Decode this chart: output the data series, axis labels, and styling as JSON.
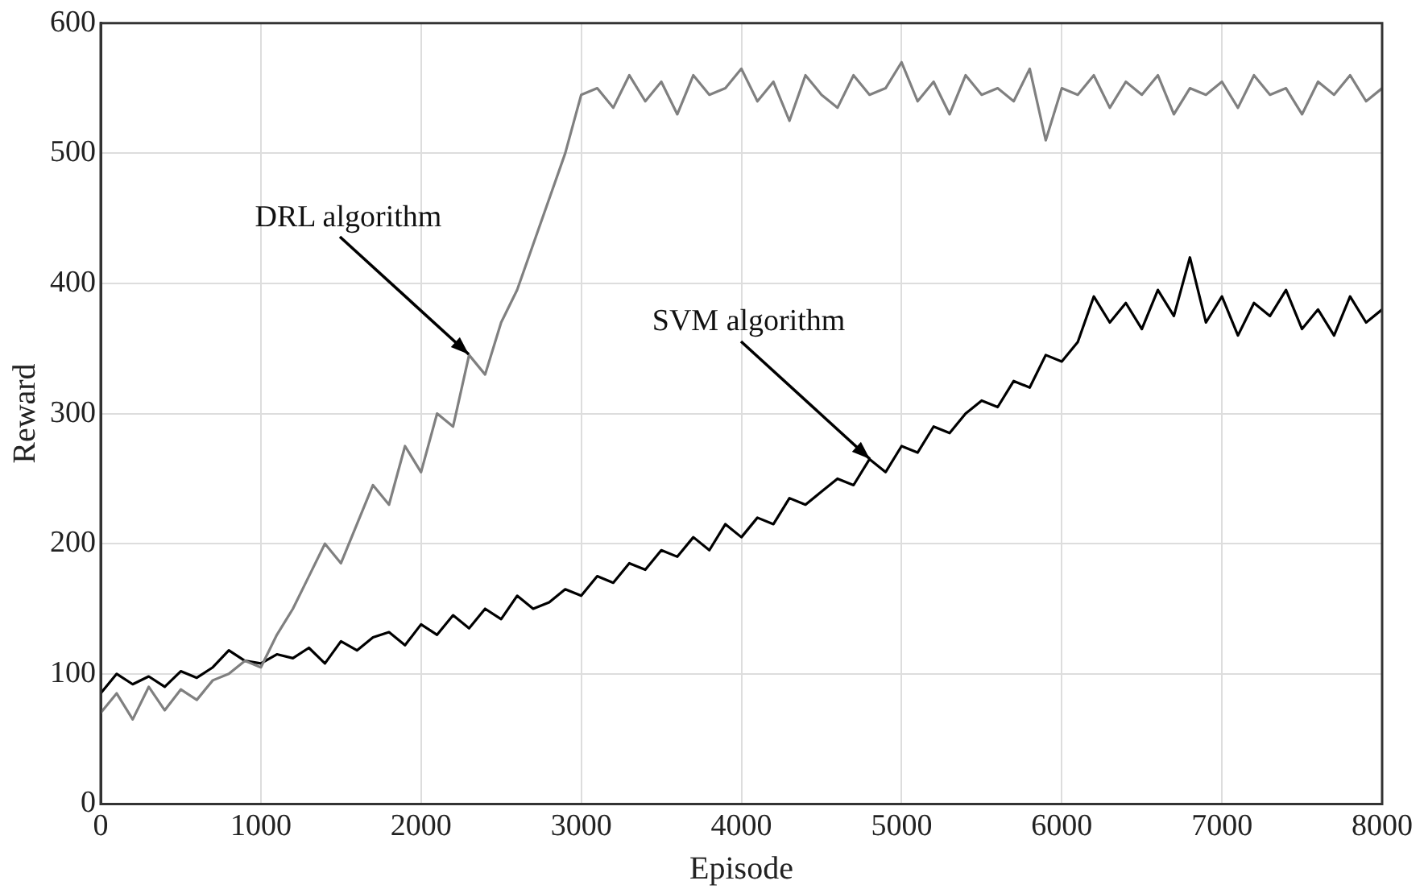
{
  "chart_data": {
    "type": "line",
    "xlabel": "Episode",
    "ylabel": "Reward",
    "x": [
      0,
      100,
      200,
      300,
      400,
      500,
      600,
      700,
      800,
      900,
      1000,
      1100,
      1200,
      1300,
      1400,
      1500,
      1600,
      1700,
      1800,
      1900,
      2000,
      2100,
      2200,
      2300,
      2400,
      2500,
      2600,
      2700,
      2800,
      2900,
      3000,
      3100,
      3200,
      3300,
      3400,
      3500,
      3600,
      3700,
      3800,
      3900,
      4000,
      4100,
      4200,
      4300,
      4400,
      4500,
      4600,
      4700,
      4800,
      4900,
      5000,
      5100,
      5200,
      5300,
      5400,
      5500,
      5600,
      5700,
      5800,
      5900,
      6000,
      6100,
      6200,
      6300,
      6400,
      6500,
      6600,
      6700,
      6800,
      6900,
      7000,
      7100,
      7200,
      7300,
      7400,
      7500,
      7600,
      7700,
      7800,
      7900,
      8000
    ],
    "series": [
      {
        "color": "#808080",
        "values": [
          70,
          85,
          65,
          90,
          72,
          88,
          80,
          95,
          100,
          110,
          105,
          130,
          150,
          175,
          200,
          185,
          215,
          245,
          230,
          275,
          255,
          300,
          290,
          345,
          330,
          370,
          395,
          430,
          465,
          500,
          545,
          550,
          535,
          560,
          540,
          555,
          530,
          560,
          545,
          550,
          565,
          540,
          555,
          525,
          560,
          545,
          535,
          560,
          545,
          550,
          570,
          540,
          555,
          530,
          560,
          545,
          550,
          540,
          565,
          510,
          550,
          545,
          560,
          535,
          555,
          545,
          560,
          530,
          550,
          545,
          555,
          535,
          560,
          545,
          550,
          530,
          555,
          545,
          560,
          540,
          550
        ]
      },
      {
        "color": "#000000",
        "values": [
          85,
          100,
          92,
          98,
          90,
          102,
          97,
          105,
          118,
          110,
          108,
          115,
          112,
          120,
          108,
          125,
          118,
          128,
          132,
          122,
          138,
          130,
          145,
          135,
          150,
          142,
          160,
          150,
          155,
          165,
          160,
          175,
          170,
          185,
          180,
          195,
          190,
          205,
          195,
          215,
          205,
          220,
          215,
          235,
          230,
          240,
          250,
          245,
          265,
          255,
          275,
          270,
          290,
          285,
          300,
          310,
          305,
          325,
          320,
          345,
          340,
          355,
          390,
          370,
          385,
          365,
          395,
          375,
          420,
          370,
          390,
          360,
          385,
          375,
          395,
          365,
          380,
          360,
          390,
          370,
          380
        ]
      }
    ],
    "xlim": [
      0,
      8000
    ],
    "xticks": [
      0,
      1000,
      2000,
      3000,
      4000,
      5000,
      6000,
      7000,
      8000
    ],
    "ylim": [
      0,
      600
    ],
    "yticks": [
      0,
      100,
      200,
      300,
      400,
      500,
      600
    ],
    "grid": true,
    "legend": false,
    "marker": "none",
    "line_style": "solid",
    "annotations": [
      {
        "text": "DRL algorithm",
        "x": 2300,
        "y": 345
      },
      {
        "text": "SVM algorithm",
        "x": 4800,
        "y": 265
      }
    ]
  }
}
